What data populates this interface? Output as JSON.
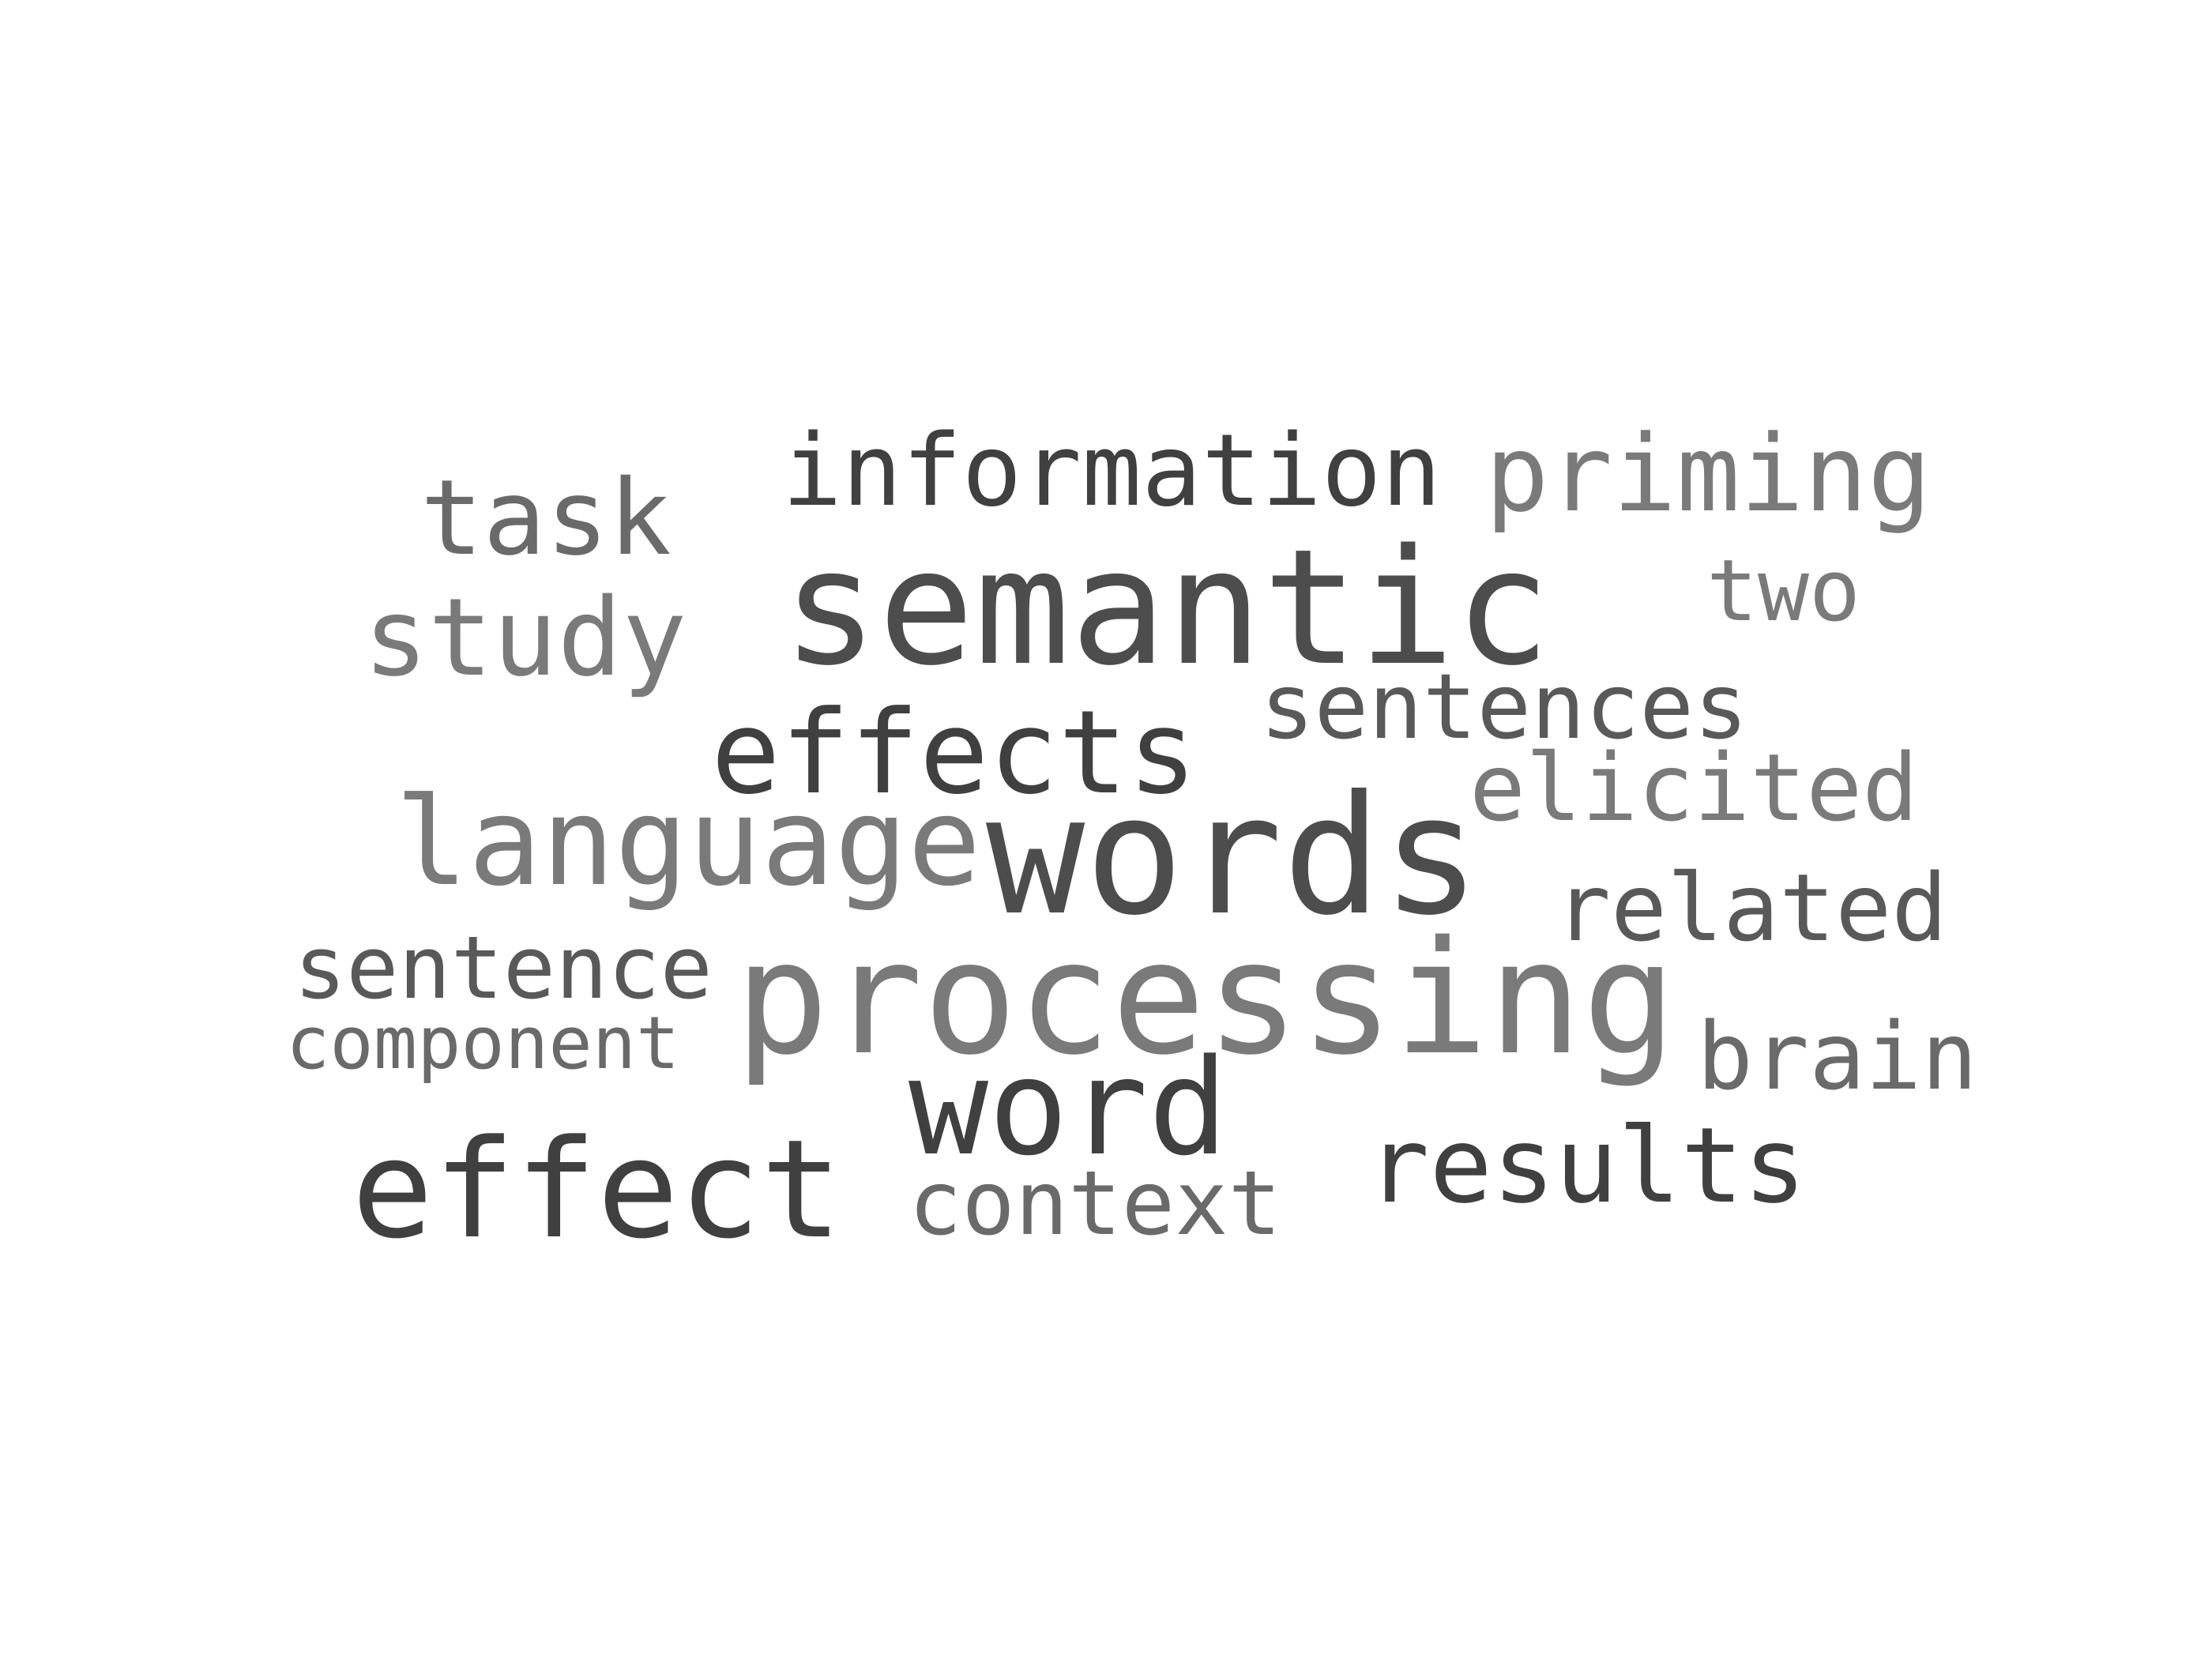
{
  "word_cloud": {
    "words": {
      "semantic": "semantic",
      "information": "information",
      "priming": "priming",
      "task": "task",
      "two": "two",
      "study": "study",
      "sentences": "sentences",
      "effects": "effects",
      "elicited": "elicited",
      "language": "language",
      "words": "words",
      "related": "related",
      "sentence": "sentence",
      "processing": "processing",
      "component": "component",
      "brain": "brain",
      "word": "word",
      "effect": "effect",
      "results": "results",
      "context": "context"
    },
    "colors": {
      "darkest": "#404040",
      "dark": "#4d4d4d",
      "mid": "#595959",
      "light": "#6a6a6a",
      "lightest": "#7a7a7a"
    }
  }
}
